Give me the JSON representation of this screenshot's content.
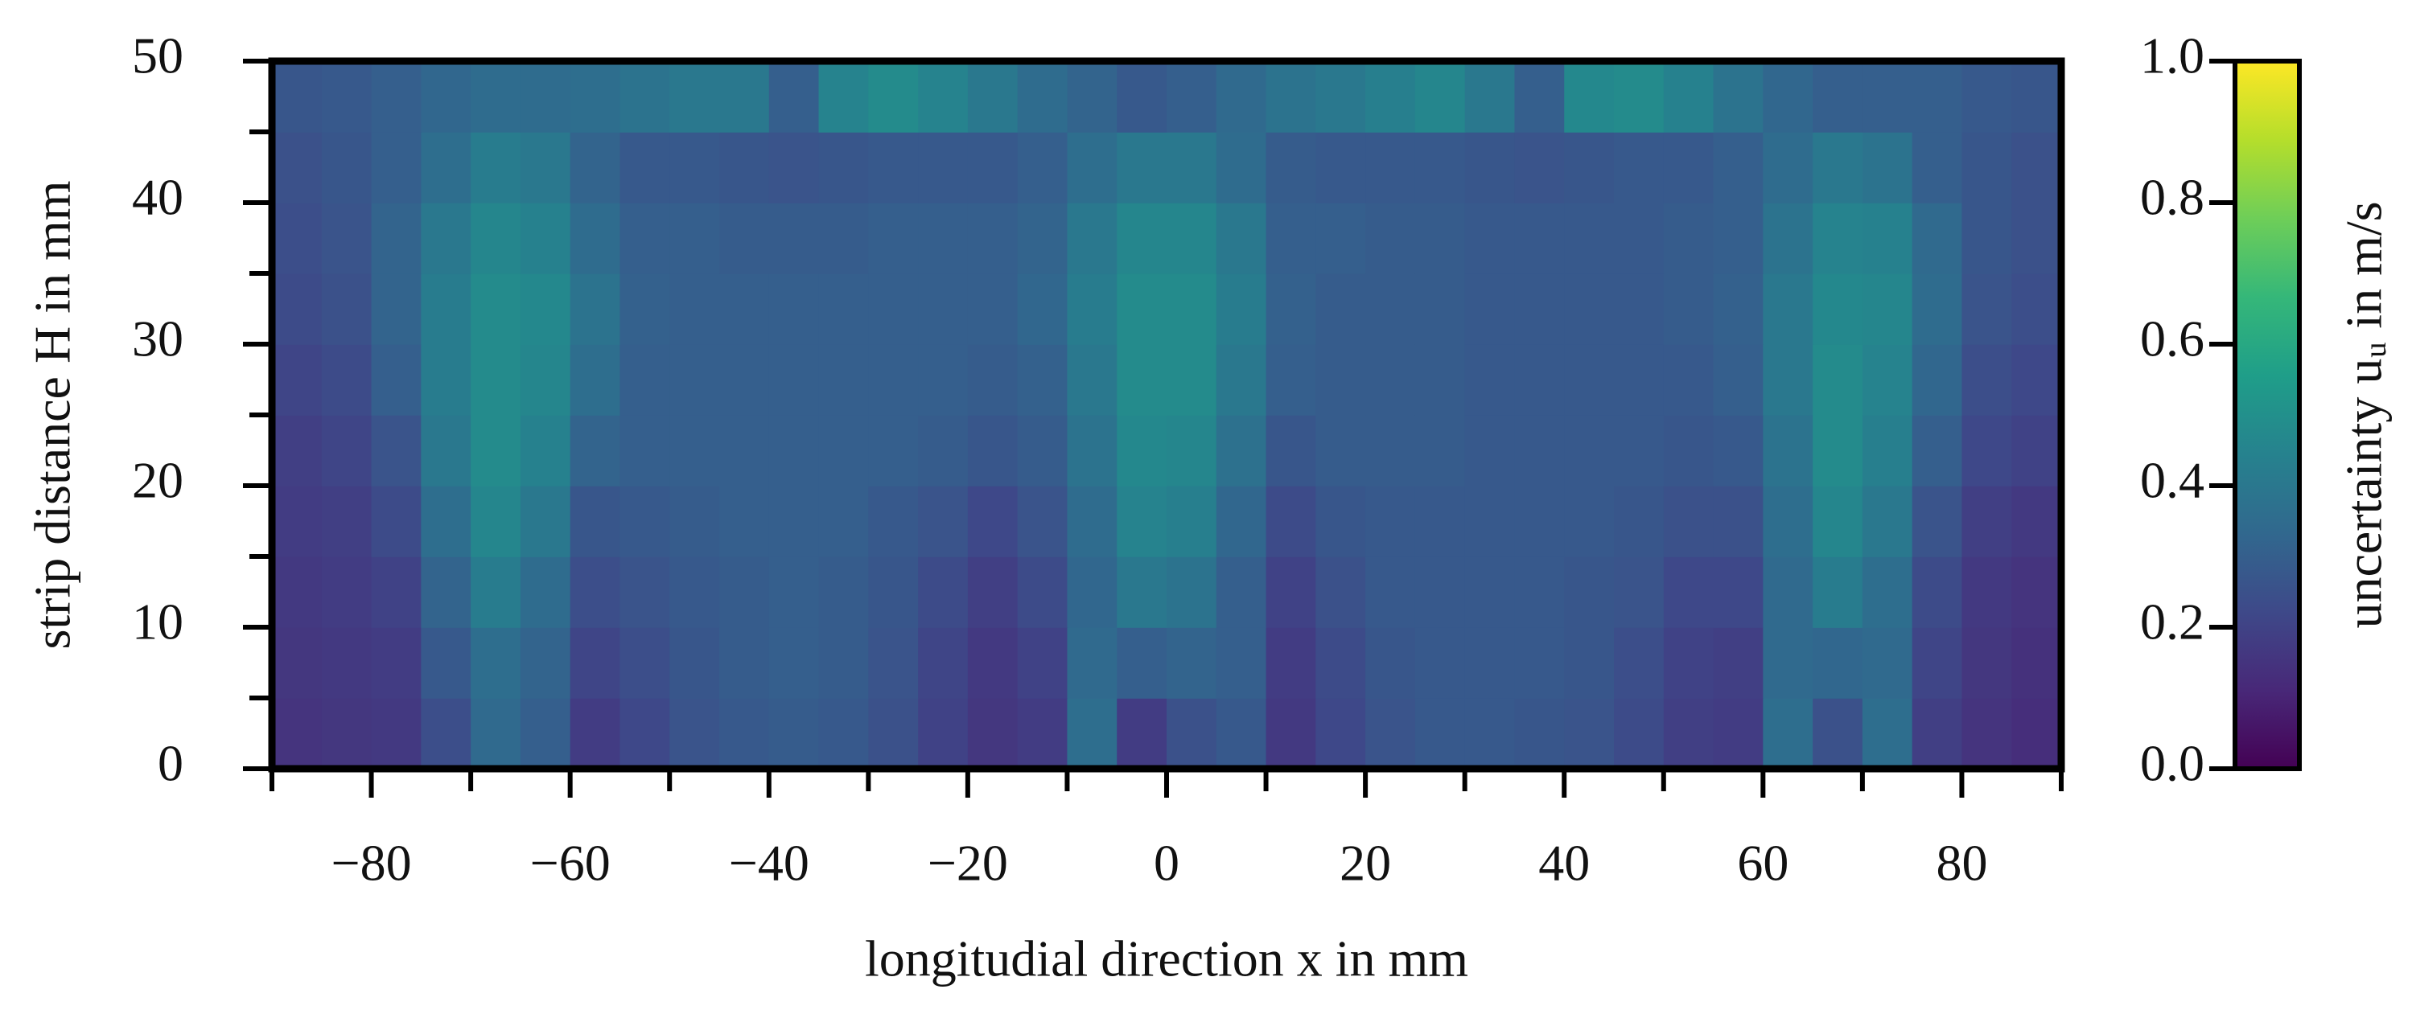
{
  "chart_data": {
    "type": "heatmap",
    "xlabel": "longitudial direction x in mm",
    "ylabel": "strip distance H in mm",
    "colorbar_label": "uncertainty uᵤ in m/s",
    "colormap": "viridis",
    "xlim": [
      -90,
      90
    ],
    "ylim": [
      0,
      50
    ],
    "zlim": [
      0,
      1
    ],
    "xticks": [
      {
        "value": -80,
        "label": "−80"
      },
      {
        "value": -60,
        "label": "−60"
      },
      {
        "value": -40,
        "label": "−40"
      },
      {
        "value": -20,
        "label": "−20"
      },
      0,
      20,
      40,
      60,
      80
    ],
    "xminorticks": [
      -90,
      -70,
      -50,
      -30,
      -10,
      10,
      30,
      50,
      70,
      90
    ],
    "yticks": [
      0,
      10,
      20,
      30,
      40,
      50
    ],
    "yminorticks": [
      5,
      15,
      25,
      35,
      45
    ],
    "zticks": [
      {
        "value": 0,
        "label": "0.0"
      },
      0.2,
      0.4,
      0.6,
      0.8,
      {
        "value": 1,
        "label": "1.0"
      }
    ],
    "x": [
      -87.5,
      -82.5,
      -77.5,
      -72.5,
      -67.5,
      -62.5,
      -57.5,
      -52.5,
      -47.5,
      -42.5,
      -37.5,
      -32.5,
      -27.5,
      -22.5,
      -17.5,
      -12.5,
      -7.5,
      -2.5,
      2.5,
      7.5,
      12.5,
      17.5,
      22.5,
      27.5,
      32.5,
      37.5,
      42.5,
      47.5,
      52.5,
      57.5,
      62.5,
      67.5,
      72.5,
      77.5,
      82.5,
      87.5
    ],
    "y": [
      2.5,
      7.5,
      12.5,
      17.5,
      22.5,
      27.5,
      32.5,
      37.5,
      42.5,
      47.5
    ],
    "z": [
      [
        0.15,
        0.16,
        0.17,
        0.24,
        0.34,
        0.3,
        0.18,
        0.22,
        0.26,
        0.28,
        0.29,
        0.28,
        0.25,
        0.2,
        0.16,
        0.18,
        0.36,
        0.18,
        0.25,
        0.28,
        0.17,
        0.22,
        0.26,
        0.28,
        0.28,
        0.27,
        0.26,
        0.23,
        0.19,
        0.18,
        0.36,
        0.25,
        0.36,
        0.19,
        0.15,
        0.13
      ],
      [
        0.16,
        0.17,
        0.18,
        0.28,
        0.36,
        0.32,
        0.21,
        0.24,
        0.27,
        0.29,
        0.3,
        0.29,
        0.26,
        0.21,
        0.17,
        0.2,
        0.34,
        0.3,
        0.32,
        0.3,
        0.18,
        0.23,
        0.27,
        0.28,
        0.28,
        0.28,
        0.27,
        0.24,
        0.2,
        0.19,
        0.34,
        0.33,
        0.34,
        0.21,
        0.16,
        0.14
      ],
      [
        0.17,
        0.18,
        0.2,
        0.32,
        0.42,
        0.35,
        0.24,
        0.26,
        0.28,
        0.29,
        0.3,
        0.29,
        0.27,
        0.23,
        0.19,
        0.23,
        0.33,
        0.4,
        0.38,
        0.3,
        0.2,
        0.25,
        0.28,
        0.28,
        0.28,
        0.28,
        0.27,
        0.26,
        0.22,
        0.22,
        0.34,
        0.42,
        0.36,
        0.23,
        0.17,
        0.15
      ],
      [
        0.18,
        0.19,
        0.23,
        0.36,
        0.46,
        0.4,
        0.27,
        0.28,
        0.29,
        0.3,
        0.3,
        0.3,
        0.28,
        0.26,
        0.22,
        0.26,
        0.35,
        0.45,
        0.43,
        0.33,
        0.23,
        0.27,
        0.28,
        0.28,
        0.28,
        0.28,
        0.28,
        0.27,
        0.25,
        0.25,
        0.36,
        0.46,
        0.4,
        0.26,
        0.19,
        0.17
      ],
      [
        0.19,
        0.21,
        0.26,
        0.4,
        0.48,
        0.44,
        0.32,
        0.3,
        0.3,
        0.3,
        0.3,
        0.3,
        0.3,
        0.29,
        0.27,
        0.29,
        0.38,
        0.47,
        0.46,
        0.37,
        0.27,
        0.29,
        0.29,
        0.29,
        0.28,
        0.28,
        0.28,
        0.28,
        0.27,
        0.28,
        0.38,
        0.48,
        0.43,
        0.3,
        0.22,
        0.2
      ],
      [
        0.21,
        0.23,
        0.3,
        0.42,
        0.48,
        0.46,
        0.36,
        0.3,
        0.3,
        0.3,
        0.3,
        0.3,
        0.3,
        0.3,
        0.29,
        0.31,
        0.4,
        0.48,
        0.48,
        0.4,
        0.3,
        0.29,
        0.29,
        0.29,
        0.28,
        0.28,
        0.28,
        0.28,
        0.28,
        0.3,
        0.4,
        0.48,
        0.45,
        0.33,
        0.24,
        0.22
      ],
      [
        0.23,
        0.25,
        0.32,
        0.42,
        0.48,
        0.47,
        0.38,
        0.31,
        0.3,
        0.3,
        0.3,
        0.3,
        0.3,
        0.3,
        0.3,
        0.33,
        0.42,
        0.48,
        0.48,
        0.42,
        0.31,
        0.29,
        0.29,
        0.29,
        0.28,
        0.28,
        0.28,
        0.28,
        0.29,
        0.31,
        0.4,
        0.47,
        0.46,
        0.35,
        0.26,
        0.24
      ],
      [
        0.24,
        0.26,
        0.32,
        0.4,
        0.46,
        0.44,
        0.35,
        0.3,
        0.3,
        0.29,
        0.29,
        0.29,
        0.3,
        0.3,
        0.3,
        0.32,
        0.4,
        0.46,
        0.46,
        0.4,
        0.3,
        0.3,
        0.29,
        0.29,
        0.28,
        0.28,
        0.28,
        0.28,
        0.29,
        0.3,
        0.38,
        0.45,
        0.44,
        0.34,
        0.27,
        0.25
      ],
      [
        0.25,
        0.27,
        0.3,
        0.36,
        0.42,
        0.4,
        0.32,
        0.28,
        0.28,
        0.27,
        0.26,
        0.27,
        0.28,
        0.28,
        0.28,
        0.3,
        0.36,
        0.4,
        0.4,
        0.35,
        0.29,
        0.28,
        0.28,
        0.28,
        0.27,
        0.26,
        0.27,
        0.28,
        0.28,
        0.3,
        0.35,
        0.4,
        0.38,
        0.3,
        0.27,
        0.25
      ],
      [
        0.27,
        0.28,
        0.3,
        0.33,
        0.35,
        0.35,
        0.36,
        0.38,
        0.4,
        0.4,
        0.3,
        0.45,
        0.48,
        0.45,
        0.4,
        0.35,
        0.32,
        0.28,
        0.3,
        0.34,
        0.38,
        0.4,
        0.43,
        0.46,
        0.4,
        0.3,
        0.47,
        0.48,
        0.44,
        0.38,
        0.33,
        0.3,
        0.3,
        0.3,
        0.28,
        0.27
      ]
    ]
  }
}
